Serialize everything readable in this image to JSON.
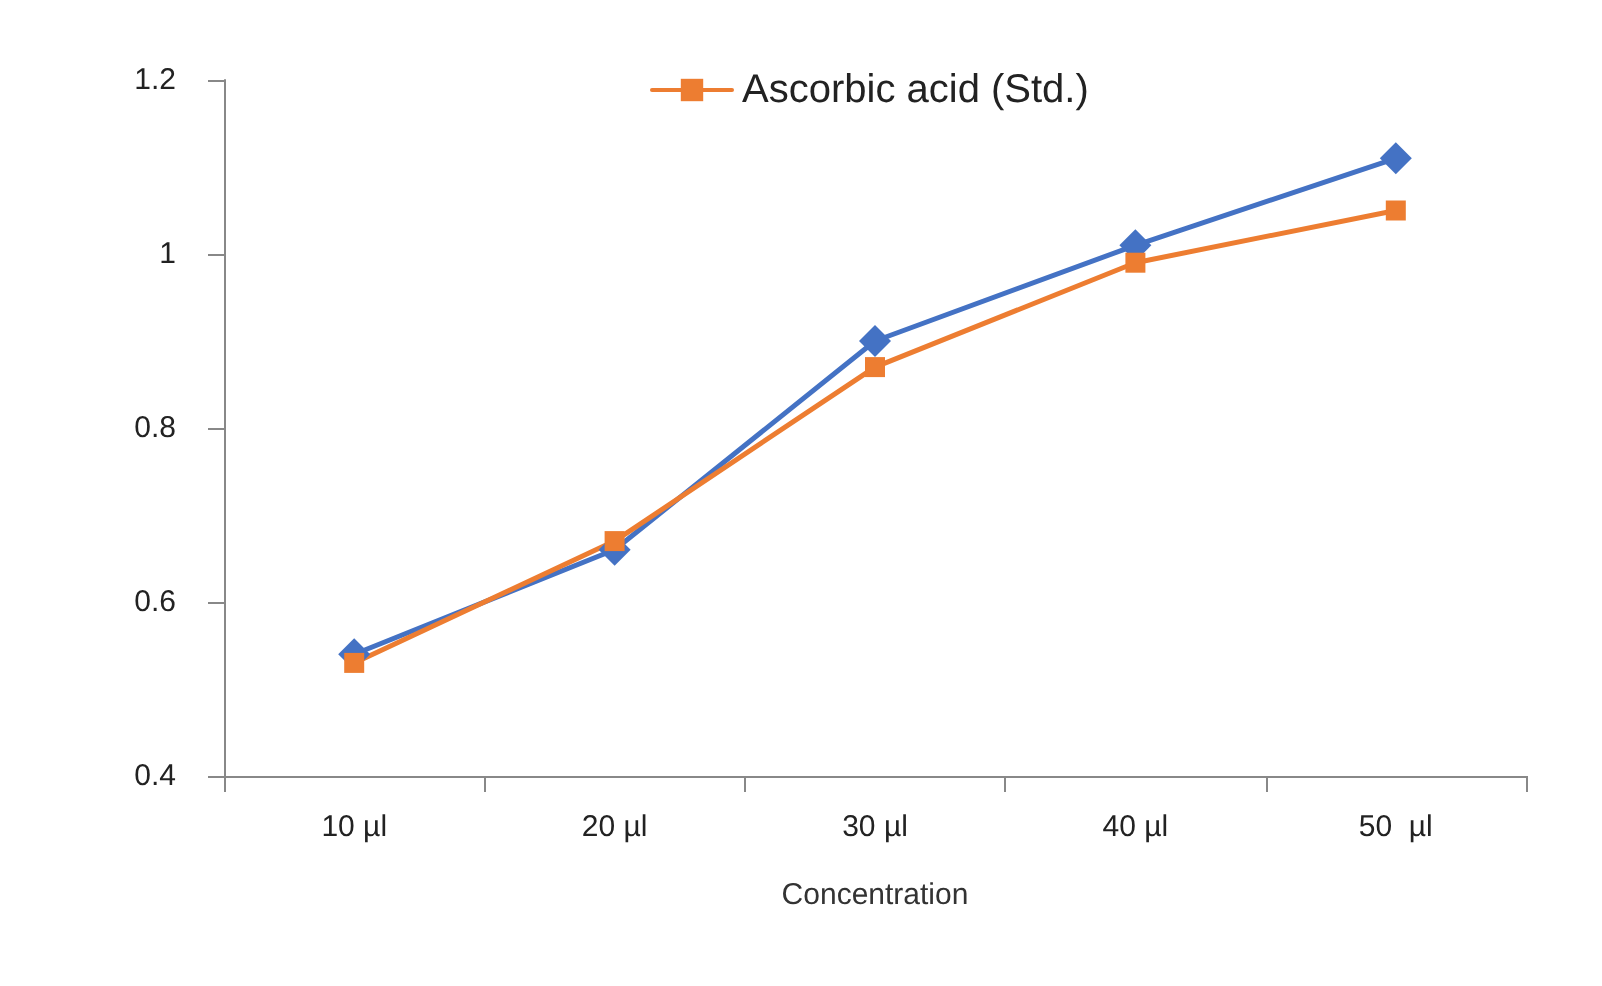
{
  "chart_data": {
    "type": "line",
    "xlabel": "Concentration",
    "categories": [
      "10 µl",
      "20 µl",
      "30 µl",
      "40 µl",
      "50  µl"
    ],
    "series": [
      {
        "color": "#4472c4",
        "marker": "diamond",
        "values": [
          0.54,
          0.66,
          0.9,
          1.01,
          1.11
        ]
      },
      {
        "name": "Ascorbic acid (Std.)",
        "color": "#ed7d31",
        "marker": "square",
        "values": [
          0.53,
          0.67,
          0.87,
          0.99,
          1.05
        ]
      }
    ],
    "ylim": [
      0.4,
      1.2
    ],
    "yticks": [
      0.4,
      0.6,
      0.8,
      1,
      1.2
    ],
    "grid": false,
    "legend": "top"
  }
}
